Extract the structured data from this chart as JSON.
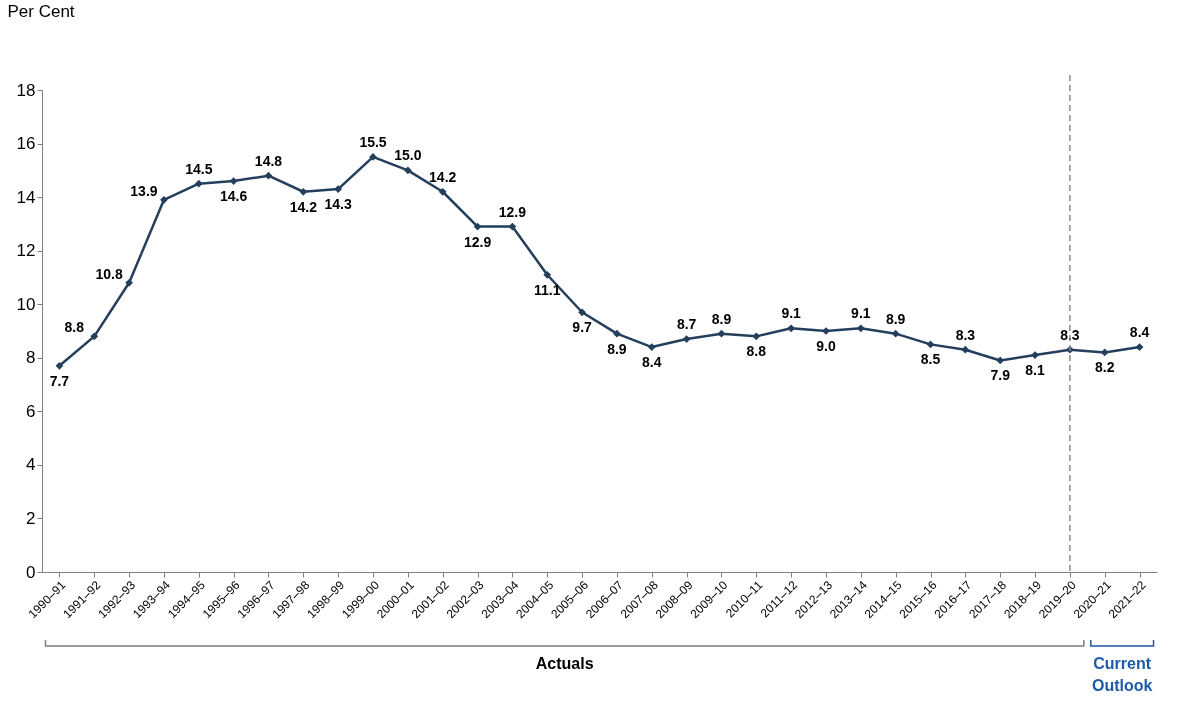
{
  "chart_data": {
    "type": "line",
    "ylabel": "Per Cent",
    "categories": [
      "1990–91",
      "1991–92",
      "1992–93",
      "1993–94",
      "1994–95",
      "1995–96",
      "1996–97",
      "1997–98",
      "1998–99",
      "1999–00",
      "2000–01",
      "2001–02",
      "2002–03",
      "2003–04",
      "2004–05",
      "2005–06",
      "2006–07",
      "2007–08",
      "2008–09",
      "2009–10",
      "2010–11",
      "2011–12",
      "2012–13",
      "2013–14",
      "2014–15",
      "2015–16",
      "2016–17",
      "2017–18",
      "2018–19",
      "2019–20",
      "2020–21",
      "2021–22"
    ],
    "series": [
      {
        "color": "#243f5c",
        "values": [
          7.7,
          8.8,
          10.8,
          13.9,
          14.5,
          14.6,
          14.8,
          14.2,
          14.3,
          15.5,
          15.0,
          14.2,
          12.9,
          12.9,
          11.1,
          9.7,
          8.9,
          8.4,
          8.7,
          8.9,
          8.8,
          9.1,
          9.0,
          9.1,
          8.9,
          8.5,
          8.3,
          7.9,
          8.1,
          8.3,
          8.2,
          8.4
        ],
        "value_labels": [
          "7.7",
          "8.8",
          "10.8",
          "13.9",
          "14.5",
          "14.6",
          "14.8",
          "14.2",
          "14.3",
          "15.5",
          "15.0",
          "14.2",
          "12.9",
          "12.9",
          "11.1",
          "9.7",
          "8.9",
          "8.4",
          "8.7",
          "8.9",
          "8.8",
          "9.1",
          "9.0",
          "9.1",
          "8.9",
          "8.5",
          "8.3",
          "7.9",
          "8.1",
          "8.3",
          "8.2",
          "8.4"
        ]
      }
    ],
    "ylim": [
      0,
      18
    ],
    "yticks": [
      0,
      2,
      4,
      6,
      8,
      10,
      12,
      14,
      16,
      18
    ],
    "grid": false,
    "marker": "diamond",
    "line_style": "solid",
    "ref_lines": [
      {
        "axis": "x",
        "value": "2019–20",
        "color": "#8c8c8c",
        "line_style": "dashed"
      }
    ],
    "annotations": [
      "Actuals",
      "Current Outlook"
    ]
  }
}
